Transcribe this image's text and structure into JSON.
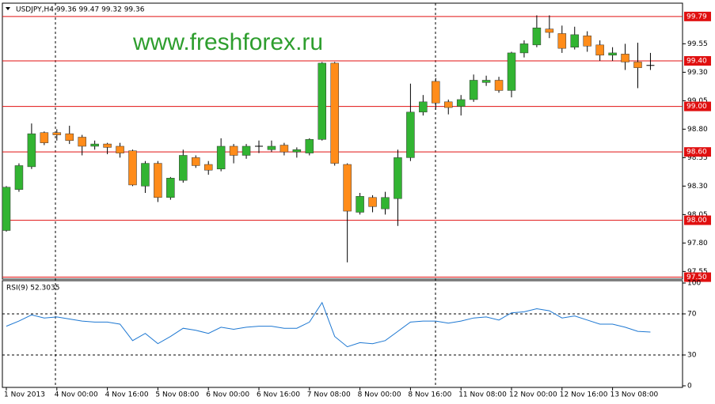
{
  "header": "USDJPY,H4  99.36 99.47 99.32 99.36",
  "watermark": "www.freshforex.ru",
  "chart_data": [
    {
      "type": "candlestick",
      "categories": [
        "1 Nov 2013",
        null,
        null,
        null,
        "4 Nov 00:00",
        null,
        null,
        null,
        "4 Nov 16:00",
        null,
        null,
        null,
        "5 Nov 08:00",
        null,
        null,
        null,
        "6 Nov 00:00",
        null,
        null,
        null,
        "6 Nov 16:00",
        null,
        null,
        null,
        "7 Nov 08:00",
        null,
        null,
        null,
        "8 Nov 00:00",
        null,
        null,
        null,
        "8 Nov 16:00",
        null,
        null,
        null,
        "11 Nov 08:00",
        null,
        null,
        null,
        "12 Nov 00:00",
        null,
        null,
        null,
        "12 Nov 16:00",
        null,
        null,
        null,
        "13 Nov 08:00",
        null,
        null,
        null
      ],
      "open": [
        97.91,
        98.27,
        98.47,
        98.77,
        98.77,
        98.76,
        98.73,
        98.65,
        98.67,
        98.65,
        98.61,
        98.3,
        98.5,
        98.2,
        98.35,
        98.55,
        98.49,
        98.45,
        98.65,
        98.57,
        98.65,
        98.62,
        98.66,
        98.6,
        98.59,
        98.71,
        99.38,
        98.49,
        98.07,
        98.2,
        98.1,
        98.19,
        98.55,
        98.95,
        99.22,
        99.04,
        99.0,
        99.06,
        99.21,
        99.23,
        99.14,
        99.47,
        99.54,
        99.68,
        99.64,
        99.52,
        99.62,
        99.54,
        99.45,
        99.46,
        99.39,
        99.36
      ],
      "high": [
        98.3,
        98.5,
        98.85,
        98.78,
        98.8,
        98.83,
        98.75,
        98.7,
        98.68,
        98.68,
        98.62,
        98.52,
        98.52,
        98.38,
        98.62,
        98.57,
        98.52,
        98.72,
        98.67,
        98.67,
        98.7,
        98.7,
        98.68,
        98.64,
        98.72,
        99.39,
        99.39,
        98.5,
        98.24,
        98.22,
        98.25,
        98.62,
        99.2,
        99.1,
        99.25,
        99.06,
        99.1,
        99.28,
        99.27,
        99.26,
        99.48,
        99.58,
        99.8,
        99.8,
        99.71,
        99.7,
        99.66,
        99.58,
        99.52,
        99.55,
        99.56,
        99.47
      ],
      "low": [
        97.9,
        98.25,
        98.45,
        98.66,
        98.7,
        98.67,
        98.57,
        98.62,
        98.58,
        98.55,
        98.3,
        98.24,
        98.16,
        98.18,
        98.33,
        98.46,
        98.4,
        98.43,
        98.5,
        98.54,
        98.59,
        98.6,
        98.57,
        98.55,
        98.57,
        98.7,
        98.48,
        97.63,
        98.05,
        98.07,
        98.05,
        97.95,
        98.52,
        98.92,
        98.97,
        98.93,
        98.92,
        99.04,
        99.18,
        99.12,
        99.08,
        99.43,
        99.52,
        99.6,
        99.47,
        99.5,
        99.48,
        99.4,
        99.4,
        99.32,
        99.16,
        99.32
      ],
      "close": [
        98.29,
        98.48,
        98.76,
        98.68,
        98.75,
        98.7,
        98.65,
        98.67,
        98.64,
        98.59,
        98.31,
        98.5,
        98.2,
        98.37,
        98.57,
        98.48,
        98.44,
        98.65,
        98.57,
        98.65,
        98.65,
        98.65,
        98.6,
        98.62,
        98.71,
        99.38,
        98.5,
        98.08,
        98.21,
        98.12,
        98.2,
        98.55,
        98.95,
        99.04,
        99.03,
        98.99,
        99.06,
        99.23,
        99.23,
        99.14,
        99.47,
        99.55,
        99.69,
        99.65,
        99.51,
        99.63,
        99.53,
        99.45,
        99.47,
        99.39,
        99.34,
        99.36
      ],
      "up_color": "#32b432",
      "down_color": "#ff8c1a",
      "ylim": [
        97.49,
        99.9
      ],
      "yticks": [
        99.55,
        {
          "value": 99.3,
          "label": "99.30"
        },
        99.05,
        {
          "value": 98.8,
          "label": "98.80"
        },
        98.55,
        {
          "value": 98.3,
          "label": "98.30"
        },
        98.05,
        {
          "value": 97.8,
          "label": "97.80"
        },
        97.55
      ],
      "hlines": [
        99.79,
        {
          "value": 99.4,
          "label": "99.40"
        },
        {
          "value": 99.0,
          "label": "99.00"
        },
        {
          "value": 98.6,
          "label": "98.60"
        },
        {
          "value": 98.0,
          "label": "98.00"
        },
        {
          "value": 97.5,
          "label": "97.50"
        }
      ],
      "hline_color": "#e01010"
    },
    {
      "type": "line",
      "title": "RSI(9) 52.3035",
      "values": [
        58,
        63,
        69,
        66,
        67,
        65,
        63,
        62,
        62,
        60,
        44,
        51,
        41,
        48,
        56,
        54,
        51,
        57,
        55,
        57,
        58,
        58,
        56,
        56,
        62,
        81,
        48,
        38,
        42,
        41,
        44,
        53,
        62,
        63,
        63,
        61,
        63,
        66,
        67,
        64,
        71,
        72,
        75,
        73,
        66,
        68,
        64,
        60,
        60,
        57,
        53,
        52.3035
      ],
      "color": "#1e78d2",
      "ylim": [
        0,
        100
      ],
      "yticks": [
        100,
        70,
        30,
        0
      ],
      "levels": [
        70,
        30
      ]
    }
  ]
}
